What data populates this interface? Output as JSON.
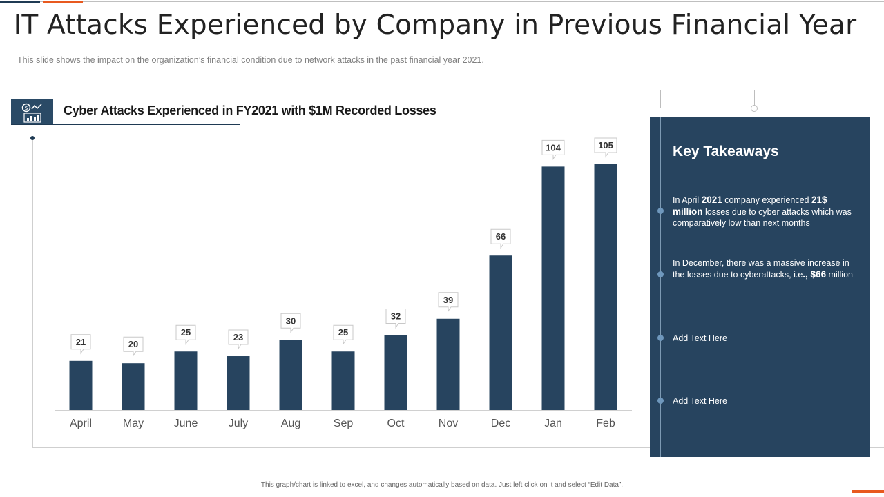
{
  "page": {
    "title": "IT Attacks Experienced by Company in Previous Financial Year",
    "subtitle": "This slide shows the impact on the organization’s financial condition due to network attacks in the past financial year 2021.",
    "footer": "This graph/chart is linked to excel, and changes automatically based on data. Just left click on it and select “Edit Data”."
  },
  "colors": {
    "bar": "#27445f",
    "accent": "#e8591f",
    "panel": "#27445f"
  },
  "header_icon": "analytics-icon",
  "chart_data": {
    "type": "bar",
    "title": "Cyber Attacks Experienced in FY2021 with $1M Recorded Losses",
    "categories": [
      "April",
      "May",
      "June",
      "July",
      "Aug",
      "Sep",
      "Oct",
      "Nov",
      "Dec",
      "Jan",
      "Feb"
    ],
    "values": [
      21,
      20,
      25,
      23,
      30,
      25,
      32,
      39,
      66,
      104,
      105
    ],
    "xlabel": "",
    "ylabel": "",
    "ylim": [
      0,
      105
    ],
    "grid": false,
    "legend": "none",
    "data_labels": true
  },
  "takeaways": {
    "title": "Key Takeaways",
    "item1": {
      "t1": "In April ",
      "b1": "2021",
      "t2": " company experienced ",
      "b2": "21$ million",
      "t3": " losses due to cyber attacks which was comparatively  low than next months"
    },
    "item2": {
      "t1": "In December, there was a massive increase in the losses due to cyberattacks, i.e",
      "b1": "., $66",
      "t2": " million"
    },
    "item3": "Add Text Here",
    "item4": "Add Text Here"
  }
}
